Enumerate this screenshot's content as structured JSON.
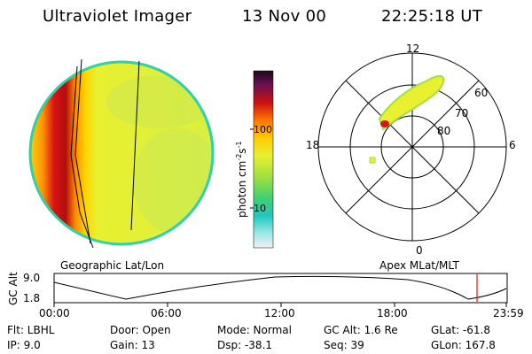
{
  "header": {
    "instrument": "Ultraviolet Imager",
    "date": "13 Nov 00",
    "time": "22:25:18 UT"
  },
  "colorbar": {
    "unit_label": "photon cm",
    "unit_sup1": "-2",
    "unit_mid": "s",
    "unit_sup2": "-1",
    "tick_100": "100",
    "tick_10": "10"
  },
  "polar": {
    "labels": {
      "top": "12",
      "left": "18",
      "right": "6",
      "bottom": "0"
    },
    "lat_labels": [
      "80",
      "70",
      "60"
    ]
  },
  "strip": {
    "left_caption": "Geographic Lat/Lon",
    "right_caption": "Apex MLat/MLT",
    "axis_title": "GC Alt",
    "y_top": "9.0",
    "y_bottom": "1.8",
    "x_ticks": [
      "00:00",
      "06:00",
      "12:00",
      "18:00",
      "23:59"
    ]
  },
  "info": {
    "flt": "Flt: LBHL",
    "ip": "IP:  9.0",
    "door": "Door: Open",
    "gain": "Gain: 13",
    "mode": "Mode: Normal",
    "dsp": "Dsp:  -38.1",
    "gcalt": "GC Alt: 1.6 Re",
    "seq": "Seq: 39",
    "glat": "GLat: -61.8",
    "glon": "GLon: 167.8"
  },
  "colors": {
    "background": "#ffffff",
    "disk_base": "#d8f040",
    "disk_edge": "#20d0a0",
    "limb_orange": "#ff9900",
    "limb_red": "#cc1010",
    "aurora": "#e0f030",
    "marker": "#ee1111"
  }
}
